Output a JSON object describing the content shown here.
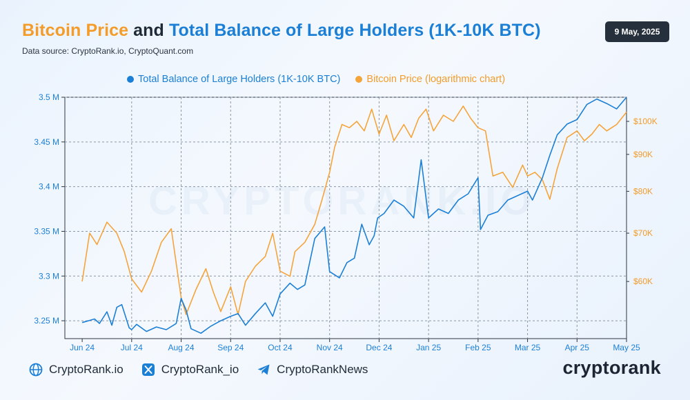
{
  "header": {
    "title_part1": "Bitcoin Price",
    "title_part2": " and ",
    "title_part3": "Total Balance of Large Holders (1K-10K BTC)",
    "source": "Data source: CryptoRank.io, CryptoQuant.com",
    "date": "9 May, 2025"
  },
  "colors": {
    "orange": "#f5a43a",
    "blue": "#1b7fd6",
    "dark": "#26303c"
  },
  "footer": {
    "items": [
      {
        "icon": "globe-icon",
        "label": "CryptoRank.io"
      },
      {
        "icon": "x-icon",
        "label": "CryptoRank_io"
      },
      {
        "icon": "telegram-icon",
        "label": "CryptoRankNews"
      }
    ],
    "brand": "cryptorank"
  },
  "watermark": "CRYPTORANK.IO",
  "chart_data": {
    "type": "line",
    "x_ticks": [
      "Jun 24",
      "Jul 24",
      "Aug 24",
      "Sep 24",
      "Oct 24",
      "Nov 24",
      "Dec 24",
      "Jan 25",
      "Feb 25",
      "Mar 25",
      "Apr 25",
      "May 25"
    ],
    "left_axis": {
      "ticks": [
        "3.25 M",
        "3.3 M",
        "3.35 M",
        "3.4 M",
        "3.45 M",
        "3.5 M"
      ],
      "range": [
        3.23,
        3.5
      ]
    },
    "right_axis": {
      "scale": "log",
      "ticks": [
        "$60K",
        "$70K",
        "$80K",
        "$90K",
        "$100K"
      ],
      "range": [
        50000,
        108000
      ]
    },
    "grid": true,
    "series": [
      {
        "name": "Total Balance of Large Holders (1K-10K BTC)",
        "axis": "left",
        "color": "#1b7fd6",
        "x": [
          0,
          0.25,
          0.35,
          0.5,
          0.6,
          0.7,
          0.8,
          0.95,
          1.0,
          1.1,
          1.3,
          1.5,
          1.7,
          1.9,
          2.0,
          2.1,
          2.2,
          2.4,
          2.6,
          2.8,
          3.0,
          3.15,
          3.3,
          3.5,
          3.7,
          3.85,
          4.0,
          4.2,
          4.35,
          4.5,
          4.7,
          4.9,
          5.0,
          5.2,
          5.35,
          5.5,
          5.65,
          5.8,
          5.9,
          5.97,
          6.1,
          6.3,
          6.5,
          6.7,
          6.85,
          7.0,
          7.2,
          7.4,
          7.6,
          7.8,
          8.0,
          8.05,
          8.2,
          8.4,
          8.6,
          8.8,
          9.0,
          9.1,
          9.3,
          9.45,
          9.6,
          9.8,
          10.0,
          10.2,
          10.4,
          10.6,
          10.8,
          11.0
        ],
        "y": [
          3.248,
          3.252,
          3.247,
          3.26,
          3.245,
          3.265,
          3.268,
          3.242,
          3.24,
          3.246,
          3.238,
          3.243,
          3.24,
          3.247,
          3.275,
          3.262,
          3.241,
          3.236,
          3.244,
          3.25,
          3.255,
          3.258,
          3.245,
          3.258,
          3.27,
          3.255,
          3.28,
          3.292,
          3.285,
          3.29,
          3.342,
          3.355,
          3.305,
          3.298,
          3.315,
          3.32,
          3.358,
          3.335,
          3.345,
          3.365,
          3.37,
          3.385,
          3.378,
          3.365,
          3.43,
          3.365,
          3.375,
          3.37,
          3.385,
          3.392,
          3.41,
          3.352,
          3.368,
          3.372,
          3.385,
          3.39,
          3.395,
          3.385,
          3.41,
          3.435,
          3.458,
          3.47,
          3.475,
          3.492,
          3.498,
          3.493,
          3.487,
          3.5
        ]
      },
      {
        "name": "Bitcoin Price (logarithmic chart)",
        "axis": "right",
        "color": "#f5a43a",
        "x": [
          0,
          0.15,
          0.3,
          0.5,
          0.7,
          0.85,
          1.0,
          1.2,
          1.4,
          1.6,
          1.8,
          2.0,
          2.1,
          2.3,
          2.5,
          2.65,
          2.8,
          3.0,
          3.15,
          3.3,
          3.5,
          3.7,
          3.85,
          4.0,
          4.2,
          4.3,
          4.5,
          4.7,
          4.85,
          5.0,
          5.1,
          5.25,
          5.4,
          5.55,
          5.7,
          5.85,
          6.0,
          6.15,
          6.3,
          6.5,
          6.65,
          6.8,
          6.95,
          7.1,
          7.3,
          7.5,
          7.7,
          7.85,
          8.0,
          8.15,
          8.3,
          8.5,
          8.7,
          8.9,
          9.0,
          9.15,
          9.3,
          9.45,
          9.6,
          9.8,
          10.0,
          10.15,
          10.3,
          10.45,
          10.6,
          10.8,
          11.0
        ],
        "y": [
          60000,
          70000,
          67500,
          72500,
          70000,
          66000,
          60500,
          58000,
          62000,
          68000,
          71000,
          57000,
          54000,
          58500,
          62500,
          58000,
          54500,
          59000,
          54000,
          60000,
          63000,
          65000,
          70000,
          62000,
          61000,
          66000,
          68000,
          72000,
          78000,
          85000,
          92000,
          99000,
          98000,
          100000,
          97000,
          104000,
          96000,
          102000,
          94000,
          99000,
          95000,
          101000,
          104000,
          97000,
          102000,
          100000,
          105000,
          101000,
          98000,
          97000,
          84000,
          85000,
          81000,
          87000,
          84000,
          85000,
          83000,
          78000,
          86000,
          95000,
          97000,
          94000,
          96000,
          99000,
          97000,
          99000,
          103000
        ]
      }
    ]
  }
}
